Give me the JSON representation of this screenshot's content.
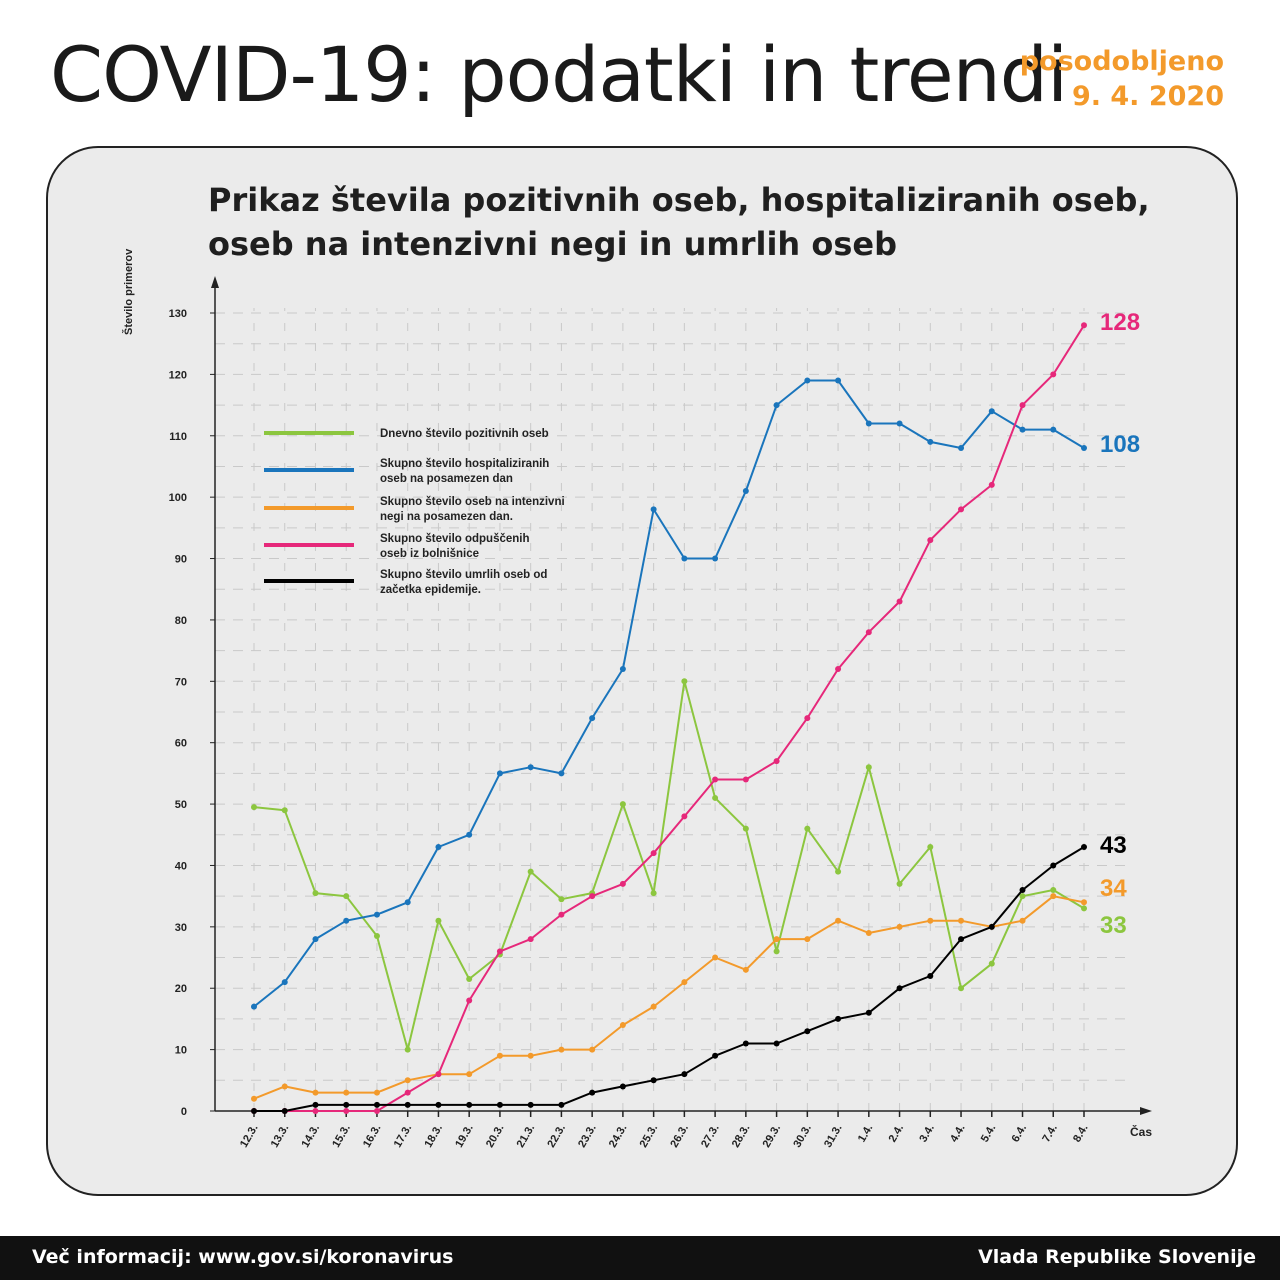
{
  "header": {
    "title": "COVID-19: podatki in trendi",
    "updated_label": "posodobljeno",
    "updated_date": "9. 4. 2020"
  },
  "footer": {
    "info": "Več informacij: www.gov.si/koronavirus",
    "publisher": "Vlada Republike Slovenije"
  },
  "chart_data": {
    "type": "line",
    "title": "Prikaz števila pozitivnih oseb, hospitaliziranih oseb, oseb na intenzivni negi in umrlih oseb",
    "xlabel": "Čas",
    "ylabel": "Število primerov",
    "ylim": [
      0,
      130
    ],
    "yticks": [
      0,
      10,
      20,
      30,
      40,
      50,
      60,
      70,
      80,
      90,
      100,
      110,
      120,
      130
    ],
    "grid": true,
    "legend_position": "top-left",
    "categories": [
      "12.3.",
      "13.3.",
      "14.3.",
      "15.3.",
      "16.3.",
      "17.3.",
      "18.3.",
      "19.3.",
      "20.3.",
      "21.3.",
      "22.3.",
      "23.3.",
      "24.3.",
      "25.3.",
      "26.3.",
      "27.3.",
      "28.3.",
      "29.3.",
      "30.3.",
      "31.3.",
      "1.4.",
      "2.4.",
      "3.4.",
      "4.4.",
      "5.4.",
      "6.4.",
      "7.4.",
      "8.4."
    ],
    "series": [
      {
        "name": "Dnevno število pozitivnih oseb",
        "color": "#8cc63f",
        "end_label": "33",
        "values": [
          49.5,
          49,
          35.5,
          35,
          28.5,
          10,
          31,
          21.5,
          25.5,
          39,
          34.5,
          35.5,
          50,
          35.5,
          70,
          51,
          46,
          26,
          46,
          39,
          56,
          37,
          43,
          20,
          24,
          35,
          36,
          33
        ]
      },
      {
        "name": "Skupno število hospitaliziranih oseb na posamezen dan",
        "color": "#1a75bc",
        "end_label": "108",
        "values": [
          17,
          21,
          28,
          31,
          32,
          34,
          43,
          45,
          55,
          56,
          55,
          64,
          72,
          98,
          90,
          90,
          101,
          115,
          119,
          119,
          112,
          112,
          109,
          108,
          114,
          111,
          111,
          108
        ]
      },
      {
        "name": "Skupno število oseb na intenzivni negi na posamezen dan.",
        "color": "#f39a2b",
        "end_label": "34",
        "values": [
          2,
          4,
          3,
          3,
          3,
          5,
          6,
          6,
          9,
          9,
          10,
          10,
          14,
          17,
          21,
          25,
          23,
          28,
          28,
          31,
          29,
          30,
          31,
          31,
          30,
          31,
          35,
          34
        ]
      },
      {
        "name": "Skupno število odpuščenih oseb iz bolnišnice",
        "color": "#e6287a",
        "end_label": "128",
        "values": [
          0,
          0,
          0,
          0,
          0,
          3,
          6,
          18,
          26,
          28,
          32,
          35,
          37,
          42,
          48,
          54,
          54,
          57,
          64,
          72,
          78,
          83,
          93,
          98,
          102,
          115,
          120,
          128
        ]
      },
      {
        "name": "Skupno število umrlih oseb od začetka epidemije.",
        "color": "#000000",
        "end_label": "43",
        "values": [
          0,
          0,
          1,
          1,
          1,
          1,
          1,
          1,
          1,
          1,
          1,
          3,
          4,
          5,
          6,
          9,
          11,
          11,
          13,
          15,
          16,
          20,
          22,
          28,
          30,
          36,
          40,
          43
        ]
      }
    ],
    "legend_lines": [
      [
        "Dnevno število pozitivnih oseb"
      ],
      [
        "Skupno število hospitaliziranih",
        "oseb na posamezen dan"
      ],
      [
        "Skupno število oseb na intenzivni",
        "negi na posamezen dan."
      ],
      [
        "Skupno število odpuščenih",
        "oseb iz bolnišnice"
      ],
      [
        "Skupno število umrlih oseb od",
        "začetka epidemije."
      ]
    ]
  }
}
